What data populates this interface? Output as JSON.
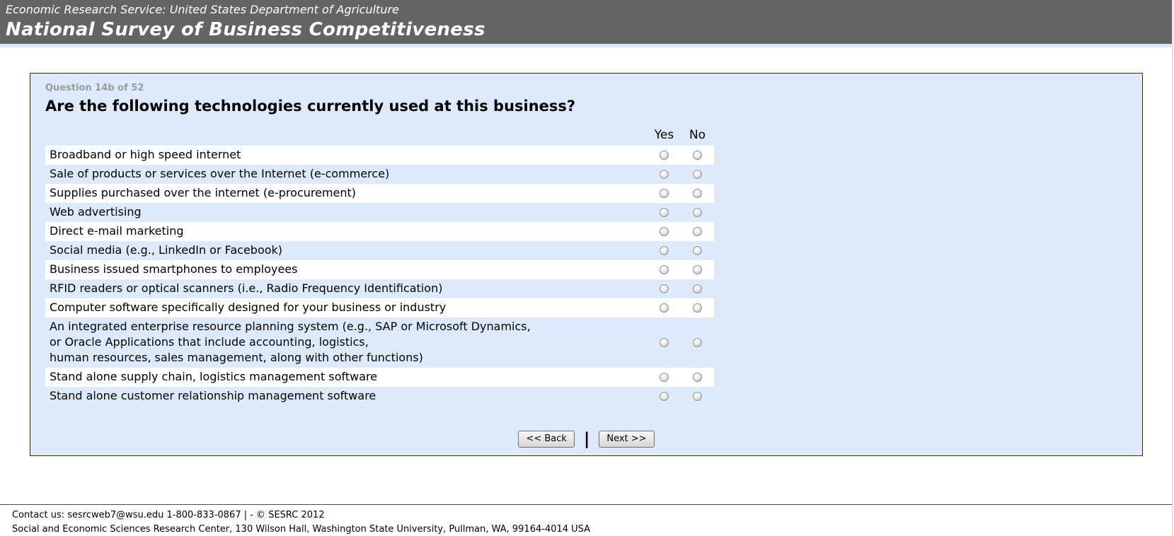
{
  "header": {
    "agency_line": "Economic Research Service: United States Department of Agriculture",
    "survey_title": "National Survey of Business Competitiveness"
  },
  "panel": {
    "question_number": "Question 14b of 52",
    "question_title": "Are the following technologies currently used at this business?",
    "columns": [
      "Yes",
      "No"
    ],
    "rows": [
      "Broadband or high speed internet",
      "Sale of products or services over the Internet (e-commerce)",
      "Supplies purchased over the internet (e-procurement)",
      "Web advertising",
      "Direct e-mail marketing",
      "Social media (e.g., LinkedIn or Facebook)",
      "Business issued smartphones to employees",
      "RFID readers or optical scanners (i.e., Radio Frequency Identification)",
      "Computer software specifically designed for your business or industry",
      "An integrated enterprise resource planning system (e.g., SAP or Microsoft Dynamics,\nor Oracle Applications that include accounting, logistics,\nhuman resources, sales management, along with other functions)",
      "Stand alone supply chain, logistics management software",
      "Stand alone customer relationship management software"
    ]
  },
  "navigation": {
    "back_label": "<< Back",
    "separator": "|",
    "next_label": "Next >>"
  },
  "footer": {
    "line1": "Contact us: sesrcweb7@wsu.edu 1-800-833-0867 | - © SESRC 2012",
    "line2": "Social and Economic Sciences Research Center, 130 Wilson Hall, Washington State University, Pullman, WA, 99164-4014 USA"
  },
  "colors": {
    "header_bg": "#646464",
    "header_text": "#ffffff",
    "accent_bar": "#d9e7f8",
    "panel_bg": "#ddeafb",
    "panel_border": "#333300",
    "row_stripe": "#ffffff",
    "question_number_text": "#9b9b9b"
  }
}
